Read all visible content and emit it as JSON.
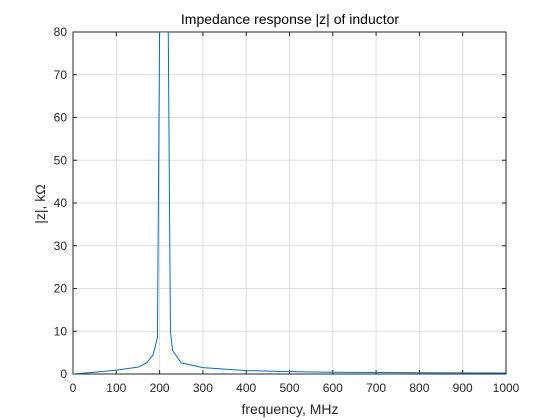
{
  "chart_data": {
    "type": "line",
    "title": "Impedance response |z| of inductor",
    "xlabel": "frequency, MHz",
    "ylabel": "|z|, kΩ",
    "xlim": [
      0,
      1000
    ],
    "ylim": [
      0,
      80
    ],
    "x_ticks": [
      0,
      100,
      200,
      300,
      400,
      500,
      600,
      700,
      800,
      900,
      1000
    ],
    "y_ticks": [
      0,
      10,
      20,
      30,
      40,
      50,
      60,
      70,
      80
    ],
    "grid": true,
    "line_color": "#0072BD",
    "series": [
      {
        "x": [
          0,
          50,
          100,
          150,
          170,
          185,
          195,
          200,
          205,
          210,
          215,
          220,
          225,
          230,
          250,
          300,
          400,
          500,
          600,
          700,
          800,
          900,
          1000
        ],
        "y": [
          0,
          0.4,
          0.9,
          1.6,
          2.6,
          4.5,
          8.5,
          80,
          80,
          80,
          80,
          80,
          10,
          5.5,
          2.6,
          1.5,
          0.8,
          0.55,
          0.42,
          0.35,
          0.3,
          0.26,
          0.23
        ]
      }
    ]
  }
}
